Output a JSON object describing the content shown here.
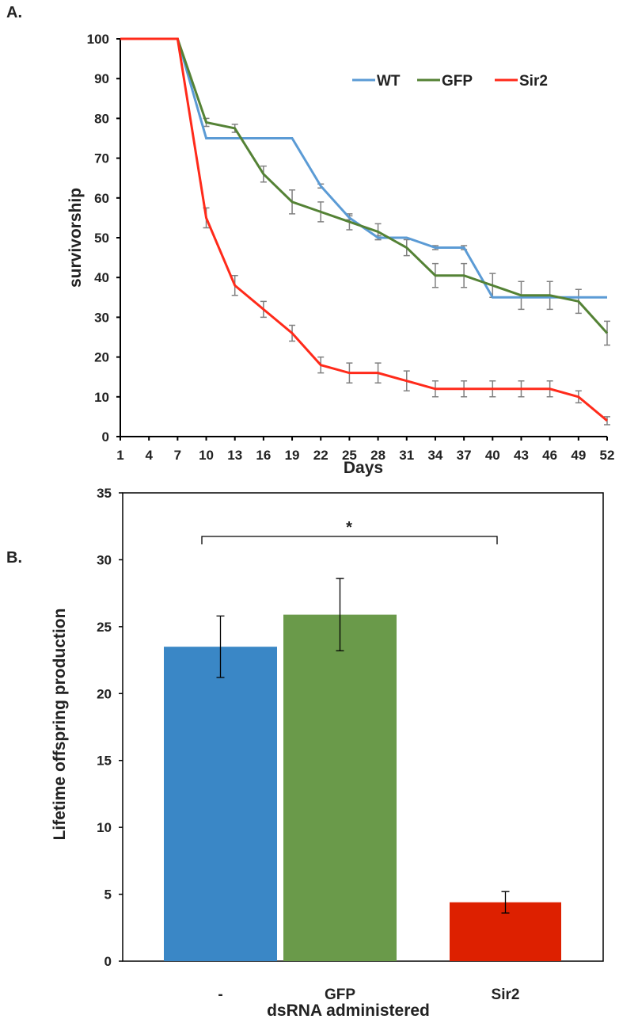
{
  "chart_data": [
    {
      "type": "line",
      "panel_label": "A.",
      "title": "",
      "xlabel": "Days",
      "ylabel": "survivorship",
      "x": [
        1,
        4,
        7,
        10,
        13,
        16,
        19,
        22,
        25,
        28,
        31,
        34,
        37,
        40,
        43,
        46,
        49,
        52
      ],
      "xlim": [
        1,
        52
      ],
      "ylim": [
        0,
        100
      ],
      "yticks": [
        0,
        10,
        20,
        30,
        40,
        50,
        60,
        70,
        80,
        90,
        100
      ],
      "legend": "top-right",
      "series": [
        {
          "name": "WT",
          "color": "#5b9bd5",
          "values": [
            100,
            100,
            100,
            75,
            75,
            75,
            75,
            63,
            55,
            50,
            50,
            47.5,
            47.5,
            35,
            35,
            35,
            35,
            35
          ],
          "errors": [
            0,
            0,
            0,
            0,
            0,
            0,
            0,
            0.5,
            0.5,
            0.5,
            0,
            0.5,
            0.5,
            0,
            0,
            0,
            0,
            0
          ]
        },
        {
          "name": "GFP",
          "color": "#548235",
          "values": [
            100,
            100,
            100,
            79,
            77.5,
            66,
            59,
            56.5,
            54,
            51.5,
            47.5,
            40.5,
            40.5,
            38,
            35.5,
            35.5,
            34,
            26
          ],
          "errors": [
            0,
            0,
            0,
            1,
            1,
            2,
            3,
            2.5,
            2,
            2,
            2,
            3,
            3,
            3,
            3.5,
            3.5,
            3,
            3
          ]
        },
        {
          "name": "Sir2",
          "color": "#ff2a1a",
          "values": [
            100,
            100,
            100,
            55,
            38,
            32,
            26,
            18,
            16,
            16,
            14,
            12,
            12,
            12,
            12,
            12,
            10,
            4
          ],
          "errors": [
            0,
            0,
            0,
            2.5,
            2.5,
            2,
            2,
            2,
            2.5,
            2.5,
            2.5,
            2,
            2,
            2,
            2,
            2,
            1.5,
            1
          ]
        }
      ]
    },
    {
      "type": "bar",
      "panel_label": "B.",
      "title": "",
      "xlabel": "dsRNA administered",
      "ylabel": "Lifetime offspring production",
      "categories": [
        "-",
        "GFP",
        "Sir2"
      ],
      "values": [
        23.5,
        25.9,
        4.4
      ],
      "errors": [
        2.3,
        2.7,
        0.8
      ],
      "colors": [
        "#3a87c6",
        "#6a9a4a",
        "#dd2000"
      ],
      "ylim": [
        0,
        35
      ],
      "yticks": [
        0,
        5,
        10,
        15,
        20,
        25,
        30,
        35
      ],
      "annotation": {
        "text": "*",
        "between": [
          "-",
          "Sir2"
        ]
      }
    }
  ]
}
